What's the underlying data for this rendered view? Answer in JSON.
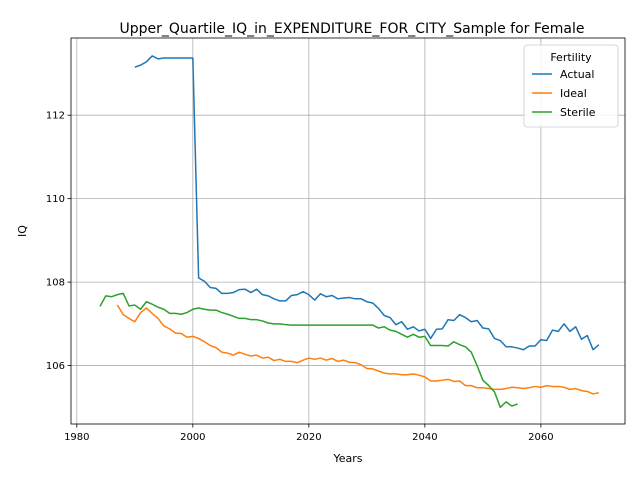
{
  "chart_data": {
    "type": "line",
    "title": "Upper_Quartile_IQ_in_EXPENDITURE_FOR_CITY_Sample for Female",
    "xlabel": "Years",
    "ylabel": "IQ",
    "xlim": [
      1979,
      2074.5
    ],
    "ylim": [
      104.6,
      113.85
    ],
    "xticks": [
      1980,
      2000,
      2020,
      2040,
      2060
    ],
    "yticks": [
      106,
      108,
      110,
      112
    ],
    "grid": true,
    "legend": {
      "title": "Fertility",
      "position": "top-right"
    },
    "series": [
      {
        "name": "Actual",
        "color": "#1f77b4",
        "x": [
          1990,
          1991,
          1992,
          1993,
          1994,
          1995,
          1996,
          1997,
          1998,
          1999,
          2000,
          2001,
          2002,
          2003,
          2004,
          2005,
          2006,
          2007,
          2008,
          2009,
          2010,
          2011,
          2012,
          2013,
          2014,
          2015,
          2016,
          2017,
          2018,
          2019,
          2020,
          2021,
          2022,
          2023,
          2024,
          2025,
          2026,
          2027,
          2028,
          2029,
          2030,
          2031,
          2032,
          2033,
          2034,
          2035,
          2036,
          2037,
          2038,
          2039,
          2040,
          2041,
          2042,
          2043,
          2044,
          2045,
          2046,
          2047,
          2048,
          2049,
          2050,
          2051,
          2052,
          2053,
          2054,
          2055,
          2056,
          2057,
          2058,
          2059,
          2060,
          2061,
          2062,
          2063,
          2064,
          2065,
          2066,
          2067,
          2068,
          2069,
          2070
        ],
        "y": [
          113.15,
          113.2,
          113.28,
          113.42,
          113.35,
          113.37,
          113.37,
          113.37,
          113.37,
          113.37,
          113.37,
          108.1,
          108.02,
          107.87,
          107.85,
          107.73,
          107.73,
          107.75,
          107.82,
          107.83,
          107.75,
          107.83,
          107.7,
          107.67,
          107.6,
          107.55,
          107.55,
          107.68,
          107.7,
          107.77,
          107.7,
          107.57,
          107.72,
          107.65,
          107.68,
          107.6,
          107.62,
          107.63,
          107.6,
          107.6,
          107.53,
          107.5,
          107.37,
          107.2,
          107.15,
          106.98,
          107.05,
          106.87,
          106.93,
          106.83,
          106.87,
          106.65,
          106.87,
          106.88,
          107.1,
          107.08,
          107.22,
          107.15,
          107.05,
          107.08,
          106.9,
          106.88,
          106.65,
          106.6,
          106.45,
          106.45,
          106.42,
          106.38,
          106.47,
          106.47,
          106.62,
          106.6,
          106.85,
          106.82,
          107.0,
          106.82,
          106.93,
          106.63,
          106.72,
          106.38,
          106.5
        ]
      },
      {
        "name": "Ideal",
        "color": "#ff7f0e",
        "x": [
          1987,
          1988,
          1989,
          1990,
          1991,
          1992,
          1993,
          1994,
          1995,
          1996,
          1997,
          1998,
          1999,
          2000,
          2001,
          2002,
          2003,
          2004,
          2005,
          2006,
          2007,
          2008,
          2009,
          2010,
          2011,
          2012,
          2013,
          2014,
          2015,
          2016,
          2017,
          2018,
          2019,
          2020,
          2021,
          2022,
          2023,
          2024,
          2025,
          2026,
          2027,
          2028,
          2029,
          2030,
          2031,
          2032,
          2033,
          2034,
          2035,
          2036,
          2037,
          2038,
          2039,
          2040,
          2041,
          2042,
          2043,
          2044,
          2045,
          2046,
          2047,
          2048,
          2049,
          2050,
          2051,
          2052,
          2053,
          2054,
          2055,
          2056,
          2057,
          2058,
          2059,
          2060,
          2061,
          2062,
          2063,
          2064,
          2065,
          2066,
          2067,
          2068,
          2069,
          2070
        ],
        "y": [
          107.45,
          107.22,
          107.13,
          107.05,
          107.27,
          107.38,
          107.25,
          107.13,
          106.95,
          106.88,
          106.78,
          106.77,
          106.68,
          106.7,
          106.65,
          106.57,
          106.48,
          106.43,
          106.32,
          106.3,
          106.25,
          106.32,
          106.27,
          106.23,
          106.25,
          106.18,
          106.2,
          106.12,
          106.15,
          106.1,
          106.1,
          106.07,
          106.13,
          106.18,
          106.15,
          106.18,
          106.13,
          106.17,
          106.1,
          106.13,
          106.08,
          106.07,
          106.02,
          105.93,
          105.92,
          105.87,
          105.82,
          105.8,
          105.8,
          105.78,
          105.78,
          105.8,
          105.77,
          105.73,
          105.63,
          105.63,
          105.65,
          105.67,
          105.62,
          105.63,
          105.52,
          105.52,
          105.47,
          105.47,
          105.45,
          105.43,
          105.43,
          105.45,
          105.48,
          105.47,
          105.45,
          105.47,
          105.5,
          105.48,
          105.52,
          105.5,
          105.5,
          105.48,
          105.43,
          105.45,
          105.4,
          105.38,
          105.32,
          105.35
        ]
      },
      {
        "name": "Sterile",
        "color": "#2ca02c",
        "x": [
          1984,
          1985,
          1986,
          1987,
          1988,
          1989,
          1990,
          1991,
          1992,
          1993,
          1994,
          1995,
          1996,
          1997,
          1998,
          1999,
          2000,
          2001,
          2002,
          2003,
          2004,
          2005,
          2006,
          2007,
          2008,
          2009,
          2010,
          2011,
          2012,
          2013,
          2014,
          2015,
          2016,
          2017,
          2018,
          2019,
          2020,
          2021,
          2022,
          2023,
          2024,
          2025,
          2026,
          2027,
          2028,
          2029,
          2030,
          2031,
          2032,
          2033,
          2034,
          2035,
          2036,
          2037,
          2038,
          2039,
          2040,
          2041,
          2042,
          2043,
          2044,
          2045,
          2046,
          2047,
          2048,
          2049,
          2050,
          2051,
          2052,
          2053,
          2054,
          2055,
          2056
        ],
        "y": [
          107.42,
          107.67,
          107.65,
          107.7,
          107.73,
          107.43,
          107.45,
          107.35,
          107.53,
          107.47,
          107.4,
          107.35,
          107.25,
          107.25,
          107.23,
          107.27,
          107.35,
          107.38,
          107.35,
          107.33,
          107.33,
          107.27,
          107.23,
          107.18,
          107.13,
          107.13,
          107.1,
          107.1,
          107.07,
          107.02,
          107.0,
          107.0,
          106.98,
          106.97,
          106.97,
          106.97,
          106.97,
          106.97,
          106.97,
          106.97,
          106.97,
          106.97,
          106.97,
          106.97,
          106.97,
          106.97,
          106.97,
          106.97,
          106.9,
          106.93,
          106.85,
          106.82,
          106.75,
          106.68,
          106.75,
          106.68,
          106.7,
          106.48,
          106.48,
          106.48,
          106.47,
          106.57,
          106.5,
          106.45,
          106.32,
          106.0,
          105.65,
          105.52,
          105.37,
          105.0,
          105.13,
          105.03,
          105.08
        ]
      }
    ]
  }
}
